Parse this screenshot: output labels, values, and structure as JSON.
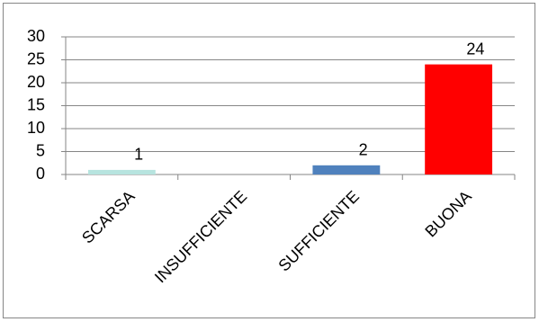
{
  "chart_data": {
    "type": "bar",
    "categories": [
      "SCARSA",
      "INSUFFICIENTE",
      "SUFFICIENTE",
      "BUONA"
    ],
    "values": [
      1,
      null,
      2,
      24
    ],
    "colors": [
      "#b7e4df",
      "#4f81bd",
      "#4f81bd",
      "#ff0000"
    ],
    "ylim": [
      0,
      30
    ],
    "yticks": [
      0,
      5,
      10,
      15,
      20,
      25,
      30
    ],
    "grid": true
  }
}
